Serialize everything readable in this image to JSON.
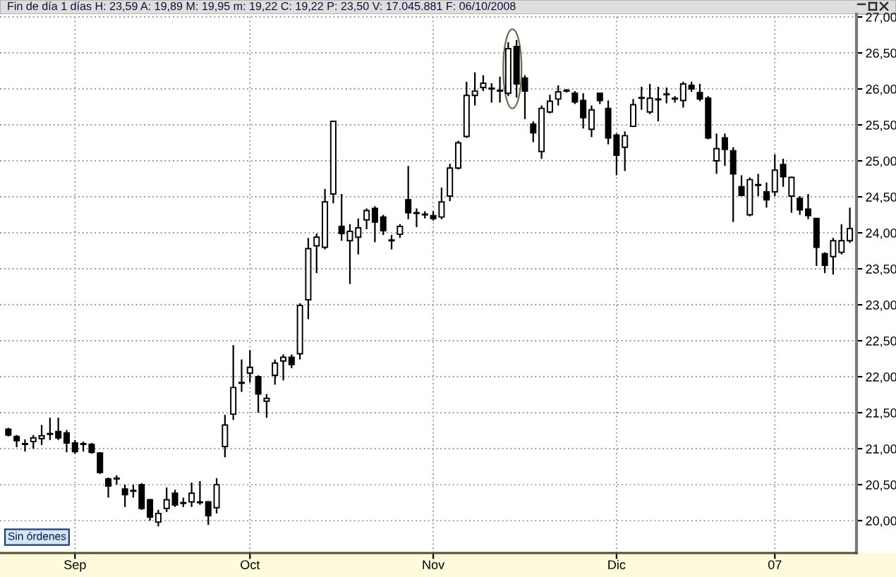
{
  "chart_data": {
    "type": "candlestick",
    "title": "Fin de día 1 días H: 23,59 A: 19,89 M: 19,95 m: 19,22 C: 19,22 P: 23,50 V: 17.045.881 F: 06/10/2008",
    "annotations": [
      "Sin órdenes"
    ],
    "categories": [
      null,
      null,
      null,
      null,
      null,
      null,
      null,
      null,
      "Sep",
      null,
      null,
      null,
      null,
      null,
      null,
      null,
      null,
      null,
      null,
      null,
      null,
      null,
      null,
      null,
      null,
      null,
      null,
      null,
      null,
      "Oct",
      null,
      null,
      null,
      null,
      null,
      null,
      null,
      null,
      null,
      null,
      null,
      null,
      null,
      null,
      null,
      null,
      null,
      null,
      null,
      null,
      null,
      "Nov",
      null,
      null,
      null,
      null,
      null,
      null,
      null,
      null,
      null,
      null,
      null,
      null,
      null,
      null,
      null,
      null,
      null,
      null,
      null,
      null,
      null,
      "Dic",
      null,
      null,
      null,
      null,
      null,
      null,
      null,
      null,
      null,
      null,
      null,
      null,
      null,
      null,
      null,
      null,
      null,
      null,
      "07",
      null,
      null,
      null,
      null,
      null,
      null,
      null,
      null,
      null
    ],
    "ohlc": [
      [
        21.27,
        21.29,
        21.17,
        21.19
      ],
      [
        21.17,
        21.19,
        21.02,
        21.11
      ],
      [
        21.06,
        21.13,
        20.96,
        21.07
      ],
      [
        21.1,
        21.19,
        21.0,
        21.15
      ],
      [
        21.14,
        21.33,
        21.05,
        21.18
      ],
      [
        21.2,
        21.43,
        21.12,
        21.21
      ],
      [
        21.24,
        21.43,
        21.12,
        21.15
      ],
      [
        21.22,
        21.26,
        20.95,
        21.08
      ],
      [
        21.08,
        21.12,
        20.93,
        20.96
      ],
      [
        21.06,
        21.1,
        20.96,
        21.07
      ],
      [
        21.06,
        21.08,
        20.93,
        20.95
      ],
      [
        20.94,
        20.95,
        20.65,
        20.67
      ],
      [
        20.58,
        20.6,
        20.32,
        20.48
      ],
      [
        20.58,
        20.63,
        20.5,
        20.59
      ],
      [
        20.44,
        20.5,
        20.19,
        20.36
      ],
      [
        20.41,
        20.5,
        20.32,
        20.42
      ],
      [
        20.5,
        20.52,
        20.15,
        20.17
      ],
      [
        20.29,
        20.3,
        20.0,
        20.05
      ],
      [
        19.98,
        20.15,
        19.92,
        20.1
      ],
      [
        20.17,
        20.46,
        20.12,
        20.29
      ],
      [
        20.38,
        20.43,
        20.19,
        20.22
      ],
      [
        20.24,
        20.32,
        20.19,
        20.25
      ],
      [
        20.26,
        20.53,
        20.19,
        20.38
      ],
      [
        20.25,
        20.55,
        20.22,
        20.26
      ],
      [
        20.26,
        20.27,
        19.94,
        20.07
      ],
      [
        20.18,
        20.59,
        20.1,
        20.5
      ],
      [
        21.03,
        21.47,
        20.88,
        21.33
      ],
      [
        21.48,
        22.44,
        21.4,
        21.85
      ],
      [
        21.91,
        22.24,
        21.79,
        21.92
      ],
      [
        22.05,
        22.37,
        21.92,
        22.13
      ],
      [
        22.0,
        22.02,
        21.5,
        21.76
      ],
      [
        21.66,
        21.76,
        21.43,
        21.7
      ],
      [
        22.02,
        22.24,
        21.89,
        22.19
      ],
      [
        22.22,
        22.31,
        21.95,
        22.27
      ],
      [
        22.27,
        22.31,
        22.12,
        22.17
      ],
      [
        22.32,
        23.02,
        22.24,
        22.99
      ],
      [
        23.07,
        23.93,
        22.8,
        23.78
      ],
      [
        23.82,
        23.99,
        23.44,
        23.94
      ],
      [
        23.8,
        24.61,
        23.77,
        24.43
      ],
      [
        24.54,
        25.55,
        24.41,
        25.55
      ],
      [
        24.09,
        24.54,
        23.89,
        23.99
      ],
      [
        23.89,
        24.12,
        23.29,
        24.02
      ],
      [
        23.94,
        24.2,
        23.7,
        24.07
      ],
      [
        24.18,
        24.34,
        24.05,
        24.31
      ],
      [
        24.34,
        24.37,
        23.87,
        24.15
      ],
      [
        24.22,
        24.25,
        23.97,
        24.03
      ],
      [
        23.89,
        23.97,
        23.77,
        23.9
      ],
      [
        23.98,
        24.12,
        23.93,
        24.09
      ],
      [
        24.46,
        24.93,
        24.19,
        24.28
      ],
      [
        24.27,
        24.34,
        24.08,
        24.28
      ],
      [
        24.25,
        24.3,
        24.2,
        24.26
      ],
      [
        24.24,
        24.3,
        24.17,
        24.2
      ],
      [
        24.22,
        24.63,
        24.19,
        24.43
      ],
      [
        24.51,
        24.96,
        24.44,
        24.9
      ],
      [
        24.9,
        25.28,
        24.88,
        25.25
      ],
      [
        25.34,
        26.1,
        25.32,
        25.91
      ],
      [
        25.91,
        26.23,
        25.77,
        25.97
      ],
      [
        26.02,
        26.19,
        25.97,
        26.08
      ],
      [
        26.0,
        26.08,
        25.81,
        26.01
      ],
      [
        25.97,
        26.17,
        25.81,
        25.98
      ],
      [
        25.94,
        26.65,
        25.9,
        26.56
      ],
      [
        26.59,
        26.68,
        25.88,
        26.07
      ],
      [
        26.15,
        26.19,
        25.58,
        25.97
      ],
      [
        25.51,
        25.55,
        25.26,
        25.39
      ],
      [
        25.13,
        25.77,
        25.03,
        25.73
      ],
      [
        25.68,
        25.92,
        25.66,
        25.83
      ],
      [
        25.86,
        26.05,
        25.77,
        25.96
      ],
      [
        25.97,
        26.0,
        25.95,
        25.98
      ],
      [
        25.94,
        25.97,
        25.79,
        25.82
      ],
      [
        25.84,
        25.94,
        25.45,
        25.6
      ],
      [
        25.44,
        25.77,
        25.33,
        25.71
      ],
      [
        25.94,
        25.94,
        25.79,
        25.84
      ],
      [
        25.73,
        25.84,
        25.23,
        25.32
      ],
      [
        25.36,
        25.38,
        24.8,
        25.08
      ],
      [
        25.19,
        25.41,
        24.86,
        25.35
      ],
      [
        25.48,
        25.86,
        25.47,
        25.78
      ],
      [
        25.87,
        26.03,
        25.71,
        25.88
      ],
      [
        25.68,
        26.07,
        25.65,
        25.87
      ],
      [
        25.85,
        26.03,
        25.55,
        25.86
      ],
      [
        25.92,
        26.02,
        25.8,
        25.93
      ],
      [
        25.86,
        25.9,
        25.81,
        25.87
      ],
      [
        25.84,
        26.1,
        25.74,
        26.07
      ],
      [
        26.05,
        26.1,
        25.96,
        26.0
      ],
      [
        25.95,
        26.07,
        25.83,
        25.86
      ],
      [
        25.87,
        25.9,
        25.3,
        25.32
      ],
      [
        25.0,
        25.38,
        24.82,
        25.17
      ],
      [
        25.32,
        25.38,
        24.93,
        25.16
      ],
      [
        25.14,
        25.19,
        24.15,
        24.82
      ],
      [
        24.64,
        24.8,
        24.51,
        24.52
      ],
      [
        24.25,
        24.77,
        24.23,
        24.74
      ],
      [
        24.66,
        24.82,
        24.51,
        24.67
      ],
      [
        24.57,
        24.7,
        24.35,
        24.46
      ],
      [
        24.57,
        25.09,
        24.51,
        24.87
      ],
      [
        24.95,
        25.03,
        24.64,
        24.78
      ],
      [
        24.51,
        24.78,
        24.28,
        24.77
      ],
      [
        24.48,
        24.51,
        24.25,
        24.32
      ],
      [
        24.33,
        24.54,
        24.19,
        24.24
      ],
      [
        24.2,
        24.2,
        23.54,
        23.8
      ],
      [
        23.71,
        23.73,
        23.44,
        23.55
      ],
      [
        23.67,
        23.93,
        23.42,
        23.89
      ],
      [
        23.73,
        24.12,
        23.7,
        23.89
      ],
      [
        23.89,
        24.35,
        23.86,
        24.06
      ]
    ],
    "ylim": [
      19.55,
      27.04
    ],
    "yticks": [
      {
        "value": 20,
        "label": "20,00"
      },
      {
        "value": 20.5,
        "label": "20,50"
      },
      {
        "value": 21,
        "label": "21,00"
      },
      {
        "value": 21.5,
        "label": "21,50"
      },
      {
        "value": 22,
        "label": "22,00"
      },
      {
        "value": 22.5,
        "label": "22,50"
      },
      {
        "value": 23,
        "label": "23,00"
      },
      {
        "value": 23.5,
        "label": "23,50"
      },
      {
        "value": 24,
        "label": "24,00"
      },
      {
        "value": 24.5,
        "label": "24,50"
      },
      {
        "value": 25,
        "label": "25,00"
      },
      {
        "value": 25.5,
        "label": "25,50"
      },
      {
        "value": 26,
        "label": "26,00"
      },
      {
        "value": 26.5,
        "label": "26,50"
      },
      {
        "value": 27,
        "label": "27,00"
      }
    ],
    "grid": true
  }
}
